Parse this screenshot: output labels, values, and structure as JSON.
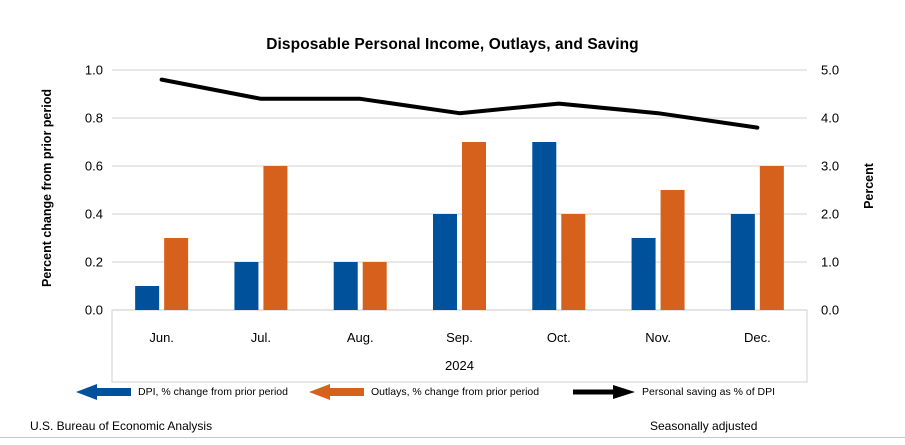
{
  "chart_data": {
    "type": "combo_bar_line",
    "title": "Disposable Personal Income, Outlays, and Saving",
    "categories": [
      "Jun.",
      "Jul.",
      "Aug.",
      "Sep.",
      "Oct.",
      "Nov.",
      "Dec."
    ],
    "year_label": "2024",
    "left_axis": {
      "title": "Percent change from prior period",
      "ticks": [
        "0.0",
        "0.2",
        "0.4",
        "0.6",
        "0.8",
        "1.0"
      ],
      "range": [
        0,
        1.0
      ]
    },
    "right_axis": {
      "title": "Percent",
      "ticks": [
        "0.0",
        "1.0",
        "2.0",
        "3.0",
        "4.0",
        "5.0"
      ],
      "range": [
        0,
        5.0
      ]
    },
    "grid": true,
    "legend_position": "bottom",
    "series": [
      {
        "name": "DPI, % change from prior period",
        "type": "bar",
        "axis": "left",
        "color": "#00519C",
        "values": [
          0.1,
          0.2,
          0.2,
          0.4,
          0.7,
          0.3,
          0.4
        ]
      },
      {
        "name": "Outlays, % change from prior period",
        "type": "bar",
        "axis": "left",
        "color": "#D6611C",
        "values": [
          0.3,
          0.6,
          0.2,
          0.7,
          0.4,
          0.5,
          0.6
        ]
      },
      {
        "name": "Personal saving as % of DPI",
        "type": "line",
        "axis": "right",
        "color": "#000000",
        "values": [
          4.8,
          4.4,
          4.4,
          4.1,
          4.3,
          4.1,
          3.8
        ]
      }
    ],
    "colors": {
      "grid": "#D9D9D9",
      "category_box": "#D9D9D9",
      "text": "#000000"
    }
  },
  "footer": {
    "source": "U.S. Bureau of Economic Analysis",
    "note": "Seasonally adjusted"
  }
}
